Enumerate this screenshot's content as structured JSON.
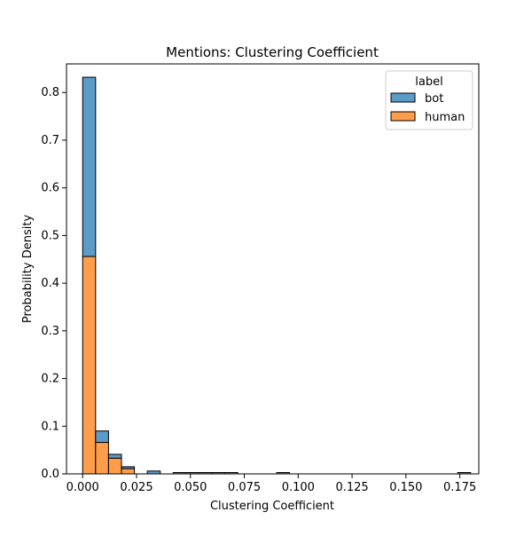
{
  "chart_data": {
    "type": "bar",
    "subtype": "stacked-histogram",
    "title": "Mentions: Clustering Coefficient",
    "xlabel": "Clustering Coefficient",
    "ylabel": "Probability Density",
    "xlim": [
      -0.0075,
      0.1838
    ],
    "ylim": [
      0,
      0.86
    ],
    "xticks": [
      0.0,
      0.025,
      0.05,
      0.075,
      0.1,
      0.125,
      0.15,
      0.175
    ],
    "xtick_labels": [
      "0.000",
      "0.025",
      "0.050",
      "0.075",
      "0.100",
      "0.125",
      "0.150",
      "0.175"
    ],
    "yticks": [
      0.0,
      0.1,
      0.2,
      0.3,
      0.4,
      0.5,
      0.6,
      0.7,
      0.8
    ],
    "ytick_labels": [
      "0.0",
      "0.1",
      "0.2",
      "0.3",
      "0.4",
      "0.5",
      "0.6",
      "0.7",
      "0.8"
    ],
    "grid": false,
    "legend": {
      "title": "label",
      "placement": "top-right",
      "entries": [
        "bot",
        "human"
      ]
    },
    "colors": {
      "bot": "#5b9bc8",
      "human": "#ff9e4a",
      "edge": "#000000"
    },
    "bin_edges": [
      0.0,
      0.006,
      0.012,
      0.018,
      0.024,
      0.03,
      0.036,
      0.042,
      0.048,
      0.054,
      0.06,
      0.066,
      0.072,
      0.078,
      0.084,
      0.09,
      0.096,
      0.102,
      0.108,
      0.114,
      0.12,
      0.126,
      0.132,
      0.138,
      0.144,
      0.15,
      0.156,
      0.162,
      0.168,
      0.174,
      0.18
    ],
    "series": [
      {
        "name": "human",
        "values": [
          0.456,
          0.066,
          0.033,
          0.011,
          0.0,
          0.0,
          0.0,
          0.0,
          0.0,
          0.0,
          0.0,
          0.0,
          0.0,
          0.0,
          0.0,
          0.0,
          0.0,
          0.0,
          0.0,
          0.0,
          0.0,
          0.0,
          0.0,
          0.0,
          0.0,
          0.0,
          0.0,
          0.0,
          0.0,
          0.0
        ]
      },
      {
        "name": "bot",
        "values": [
          0.376,
          0.024,
          0.008,
          0.004,
          0.0,
          0.006,
          0.0,
          0.0,
          0.0,
          0.0,
          0.0,
          0.0,
          0.0,
          0.0,
          0.0,
          0.0,
          0.0,
          0.0,
          0.0,
          0.0,
          0.0,
          0.0,
          0.0,
          0.0,
          0.0,
          0.0,
          0.0,
          0.0,
          0.0,
          0.0
        ]
      }
    ],
    "near_zero_bins": [
      {
        "x0": 0.042,
        "x1": 0.048
      },
      {
        "x0": 0.048,
        "x1": 0.054
      },
      {
        "x0": 0.054,
        "x1": 0.06
      },
      {
        "x0": 0.06,
        "x1": 0.066
      },
      {
        "x0": 0.066,
        "x1": 0.072
      },
      {
        "x0": 0.09,
        "x1": 0.096
      },
      {
        "x0": 0.174,
        "x1": 0.18
      }
    ]
  }
}
